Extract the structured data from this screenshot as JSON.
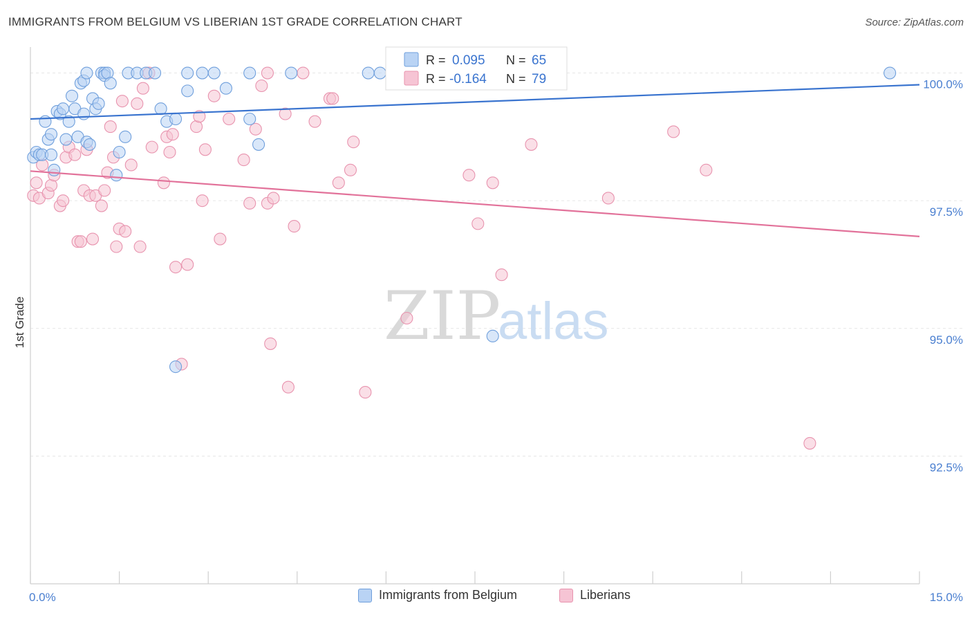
{
  "header": {
    "title": "IMMIGRANTS FROM BELGIUM VS LIBERIAN 1ST GRADE CORRELATION CHART",
    "source": "Source: ZipAtlas.com"
  },
  "watermark": {
    "zip": "ZIP",
    "atlas": "atlas"
  },
  "legend_top": {
    "rows": [
      {
        "r_label": "R =",
        "r_value": "0.095",
        "n_label": "N =",
        "n_value": "65"
      },
      {
        "r_label": "R =",
        "r_value": "-0.164",
        "n_label": "N =",
        "n_value": "79"
      }
    ]
  },
  "legend_bottom": {
    "items": [
      "Immigrants from Belgium",
      "Liberians"
    ]
  },
  "colors": {
    "blue_fill": "#b9d3f4",
    "blue_stroke": "#6f9fdc",
    "blue_line": "#3a74cf",
    "pink_fill": "#f6c4d4",
    "pink_stroke": "#e893ae",
    "pink_line": "#e2729a",
    "tick_text": "#4a7fd0",
    "grid": "#e6e6e6"
  },
  "chart_data": {
    "type": "scatter",
    "title": "IMMIGRANTS FROM BELGIUM VS LIBERIAN 1ST GRADE CORRELATION CHART",
    "xlabel": "",
    "ylabel": "1st Grade",
    "xlim": [
      0.0,
      15.0
    ],
    "ylim": [
      90.0,
      100.4
    ],
    "x_tick_labels": [
      "0.0%",
      "15.0%"
    ],
    "y_ticks": [
      92.5,
      95.0,
      97.5,
      100.0
    ],
    "y_tick_labels": [
      "92.5%",
      "95.0%",
      "97.5%",
      "100.0%"
    ],
    "grid": true,
    "legend_position": "top-center",
    "series": [
      {
        "name": "Immigrants from Belgium",
        "r": 0.095,
        "n": 65,
        "trend": {
          "x": [
            0.0,
            15.0
          ],
          "y": [
            99.1,
            99.77
          ]
        },
        "points": [
          [
            0.05,
            98.35
          ],
          [
            0.1,
            98.45
          ],
          [
            0.15,
            98.4
          ],
          [
            0.2,
            98.4
          ],
          [
            0.25,
            99.05
          ],
          [
            0.3,
            98.7
          ],
          [
            0.35,
            98.8
          ],
          [
            0.35,
            98.4
          ],
          [
            0.4,
            98.1
          ],
          [
            0.45,
            99.25
          ],
          [
            0.5,
            99.2
          ],
          [
            0.55,
            99.3
          ],
          [
            0.6,
            98.7
          ],
          [
            0.65,
            99.05
          ],
          [
            0.7,
            99.55
          ],
          [
            0.75,
            99.3
          ],
          [
            0.8,
            98.75
          ],
          [
            0.85,
            99.8
          ],
          [
            0.9,
            99.85
          ],
          [
            0.9,
            99.2
          ],
          [
            0.95,
            98.65
          ],
          [
            1.0,
            98.6
          ],
          [
            0.95,
            100.0
          ],
          [
            1.05,
            99.5
          ],
          [
            1.1,
            99.3
          ],
          [
            1.15,
            99.4
          ],
          [
            1.2,
            100.0
          ],
          [
            1.25,
            100.0
          ],
          [
            1.25,
            99.95
          ],
          [
            1.3,
            100.0
          ],
          [
            1.35,
            99.8
          ],
          [
            1.45,
            98.0
          ],
          [
            1.5,
            98.45
          ],
          [
            1.6,
            98.75
          ],
          [
            1.65,
            100.0
          ],
          [
            1.8,
            100.0
          ],
          [
            1.95,
            100.0
          ],
          [
            2.1,
            100.0
          ],
          [
            2.2,
            99.3
          ],
          [
            2.3,
            99.05
          ],
          [
            2.45,
            99.1
          ],
          [
            2.45,
            94.25
          ],
          [
            2.65,
            100.0
          ],
          [
            2.65,
            99.65
          ],
          [
            2.9,
            100.0
          ],
          [
            3.1,
            100.0
          ],
          [
            3.3,
            99.7
          ],
          [
            3.7,
            100.0
          ],
          [
            3.7,
            99.1
          ],
          [
            3.85,
            98.6
          ],
          [
            4.4,
            100.0
          ],
          [
            5.7,
            100.0
          ],
          [
            5.9,
            100.0
          ],
          [
            7.8,
            94.85
          ],
          [
            14.5,
            100.0
          ]
        ]
      },
      {
        "name": "Liberians",
        "r": -0.164,
        "n": 79,
        "trend": {
          "x": [
            0.0,
            15.0
          ],
          "y": [
            98.08,
            96.8
          ]
        },
        "points": [
          [
            0.05,
            97.6
          ],
          [
            0.1,
            97.85
          ],
          [
            0.15,
            97.55
          ],
          [
            0.2,
            98.2
          ],
          [
            0.3,
            97.65
          ],
          [
            0.35,
            97.8
          ],
          [
            0.4,
            98.0
          ],
          [
            0.5,
            97.4
          ],
          [
            0.55,
            97.5
          ],
          [
            0.6,
            98.35
          ],
          [
            0.65,
            98.55
          ],
          [
            0.75,
            98.4
          ],
          [
            0.8,
            96.7
          ],
          [
            0.85,
            96.7
          ],
          [
            0.9,
            97.7
          ],
          [
            0.95,
            98.5
          ],
          [
            1.0,
            97.6
          ],
          [
            1.05,
            96.75
          ],
          [
            1.1,
            97.6
          ],
          [
            1.2,
            97.4
          ],
          [
            1.25,
            97.7
          ],
          [
            1.3,
            98.05
          ],
          [
            1.35,
            98.95
          ],
          [
            1.4,
            98.35
          ],
          [
            1.45,
            96.6
          ],
          [
            1.5,
            96.95
          ],
          [
            1.55,
            99.45
          ],
          [
            1.6,
            96.9
          ],
          [
            1.7,
            98.2
          ],
          [
            1.8,
            99.4
          ],
          [
            1.85,
            96.6
          ],
          [
            1.9,
            99.7
          ],
          [
            2.0,
            100.0
          ],
          [
            2.05,
            98.55
          ],
          [
            2.25,
            97.85
          ],
          [
            2.3,
            98.75
          ],
          [
            2.35,
            98.45
          ],
          [
            2.4,
            98.8
          ],
          [
            2.45,
            96.2
          ],
          [
            2.55,
            94.3
          ],
          [
            2.65,
            96.25
          ],
          [
            2.8,
            98.95
          ],
          [
            2.85,
            99.15
          ],
          [
            2.9,
            97.5
          ],
          [
            2.95,
            98.5
          ],
          [
            3.1,
            99.55
          ],
          [
            3.2,
            96.75
          ],
          [
            3.35,
            99.1
          ],
          [
            3.6,
            98.3
          ],
          [
            3.7,
            97.45
          ],
          [
            3.8,
            98.9
          ],
          [
            3.9,
            99.75
          ],
          [
            4.0,
            97.45
          ],
          [
            4.0,
            100.0
          ],
          [
            4.05,
            94.7
          ],
          [
            4.1,
            97.55
          ],
          [
            4.3,
            99.2
          ],
          [
            4.35,
            93.85
          ],
          [
            4.45,
            97.0
          ],
          [
            4.6,
            100.0
          ],
          [
            4.8,
            99.05
          ],
          [
            5.05,
            99.5
          ],
          [
            5.1,
            99.5
          ],
          [
            5.2,
            97.85
          ],
          [
            5.4,
            98.1
          ],
          [
            5.45,
            98.65
          ],
          [
            5.65,
            93.75
          ],
          [
            6.35,
            95.2
          ],
          [
            7.4,
            98.0
          ],
          [
            7.55,
            97.05
          ],
          [
            7.8,
            97.85
          ],
          [
            7.95,
            96.05
          ],
          [
            8.45,
            98.6
          ],
          [
            9.75,
            97.55
          ],
          [
            10.85,
            98.85
          ],
          [
            11.4,
            98.1
          ],
          [
            13.15,
            92.75
          ]
        ]
      }
    ]
  }
}
